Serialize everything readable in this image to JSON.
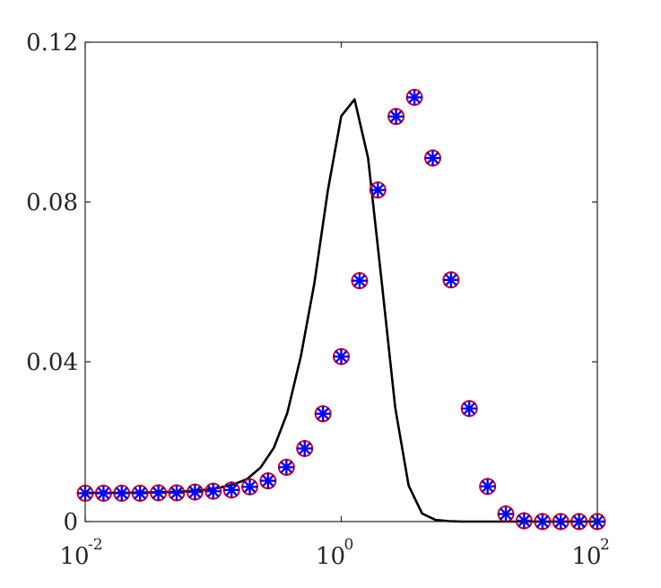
{
  "chart_data": {
    "type": "line",
    "x_scale": "log",
    "xlim": [
      0.01,
      100
    ],
    "ylim": [
      0,
      0.12
    ],
    "grid": false,
    "x_ticks": [
      {
        "value": 0.01,
        "base": "10",
        "exp": "-2"
      },
      {
        "value": 1,
        "base": "10",
        "exp": "0"
      },
      {
        "value": 100,
        "base": "10",
        "exp": "2"
      }
    ],
    "y_ticks": [
      {
        "value": 0,
        "label": "0"
      },
      {
        "value": 0.04,
        "label": "0.04"
      },
      {
        "value": 0.08,
        "label": "0.08"
      },
      {
        "value": 0.12,
        "label": "0.12"
      }
    ],
    "x": [
      0.01,
      0.0127,
      0.0162,
      0.0207,
      0.0264,
      0.0336,
      0.0428,
      0.0546,
      0.0695,
      0.0886,
      0.113,
      0.144,
      0.183,
      0.234,
      0.298,
      0.379,
      0.483,
      0.616,
      0.785,
      1.0,
      1.27,
      1.62,
      2.07,
      2.64,
      3.36,
      4.28,
      5.46,
      6.95,
      8.86,
      11.3,
      14.4,
      18.3,
      23.4,
      29.8,
      37.9,
      48.3,
      61.6,
      78.5,
      100
    ],
    "series": [
      {
        "style": "line",
        "color": "#000000",
        "y": [
          0.0072,
          0.0072,
          0.0072,
          0.0072,
          0.0073,
          0.0073,
          0.0074,
          0.0075,
          0.0077,
          0.008,
          0.0085,
          0.0093,
          0.0106,
          0.0135,
          0.0185,
          0.0272,
          0.0413,
          0.0596,
          0.0828,
          0.1015,
          0.1057,
          0.091,
          0.06,
          0.0285,
          0.009,
          0.002,
          0.0004,
          0.0001,
          0.0,
          0.0,
          0.0,
          0.0,
          0.0,
          0.0,
          0.0,
          0.0,
          0.0,
          0.0,
          0.0
        ]
      },
      {
        "style": "markers",
        "marker": "circle",
        "color": "#e00000",
        "x": [
          0.01,
          0.0139,
          0.0193,
          0.0268,
          0.0373,
          0.0518,
          0.072,
          0.1,
          0.139,
          0.193,
          0.268,
          0.373,
          0.518,
          0.72,
          1.0,
          1.39,
          1.93,
          2.68,
          3.73,
          5.18,
          7.2,
          10.0,
          13.9,
          19.3,
          26.8,
          37.3,
          51.8,
          72.0,
          100
        ],
        "y": [
          0.0071,
          0.0071,
          0.0071,
          0.0071,
          0.0072,
          0.0072,
          0.0074,
          0.0076,
          0.0079,
          0.0087,
          0.0102,
          0.0136,
          0.0183,
          0.027,
          0.0413,
          0.0603,
          0.083,
          0.1014,
          0.1062,
          0.091,
          0.0605,
          0.0283,
          0.0088,
          0.0019,
          0.0002,
          0.0,
          0.0,
          0.0,
          0.0
        ]
      },
      {
        "style": "markers",
        "marker": "asterisk",
        "color": "#0000ff",
        "x": [
          0.01,
          0.0139,
          0.0193,
          0.0268,
          0.0373,
          0.0518,
          0.072,
          0.1,
          0.139,
          0.193,
          0.268,
          0.373,
          0.518,
          0.72,
          1.0,
          1.39,
          1.93,
          2.68,
          3.73,
          5.18,
          7.2,
          10.0,
          13.9,
          19.3,
          26.8,
          37.3,
          51.8,
          72.0,
          100
        ],
        "y": [
          0.0071,
          0.0071,
          0.0071,
          0.0071,
          0.0072,
          0.0072,
          0.0074,
          0.0076,
          0.0079,
          0.0087,
          0.0102,
          0.0136,
          0.0183,
          0.027,
          0.0413,
          0.0603,
          0.083,
          0.1014,
          0.1062,
          0.091,
          0.0605,
          0.0283,
          0.0088,
          0.0019,
          0.0002,
          0.0,
          0.0,
          0.0,
          0.0
        ]
      }
    ]
  }
}
